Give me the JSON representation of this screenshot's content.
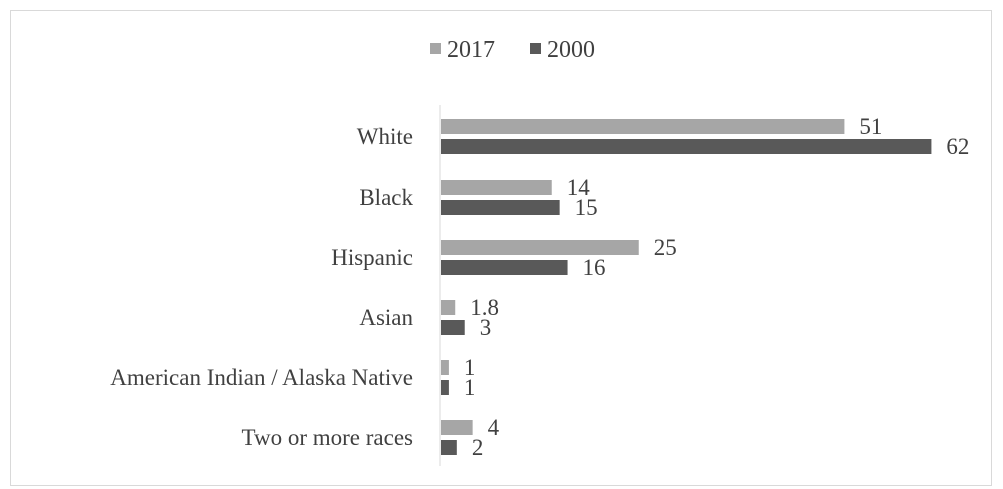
{
  "chart_data": {
    "type": "bar",
    "orientation": "horizontal",
    "categories": [
      "White",
      "Black",
      "Hispanic",
      "Asian",
      "American Indian / Alaska Native",
      "Two or more races"
    ],
    "series": [
      {
        "name": "2017",
        "color": "#a6a6a6",
        "values": [
          51,
          14,
          25,
          1.8,
          1,
          4
        ],
        "labels": [
          "51",
          "14",
          "25",
          "1.8",
          "1",
          "4"
        ]
      },
      {
        "name": "2000",
        "color": "#595959",
        "values": [
          62,
          15,
          16,
          3,
          1,
          2
        ],
        "labels": [
          "62",
          "15",
          "16",
          "3",
          "1",
          "2"
        ]
      }
    ],
    "xlim": [
      0,
      62
    ],
    "grid": false,
    "legend_position": "top"
  }
}
